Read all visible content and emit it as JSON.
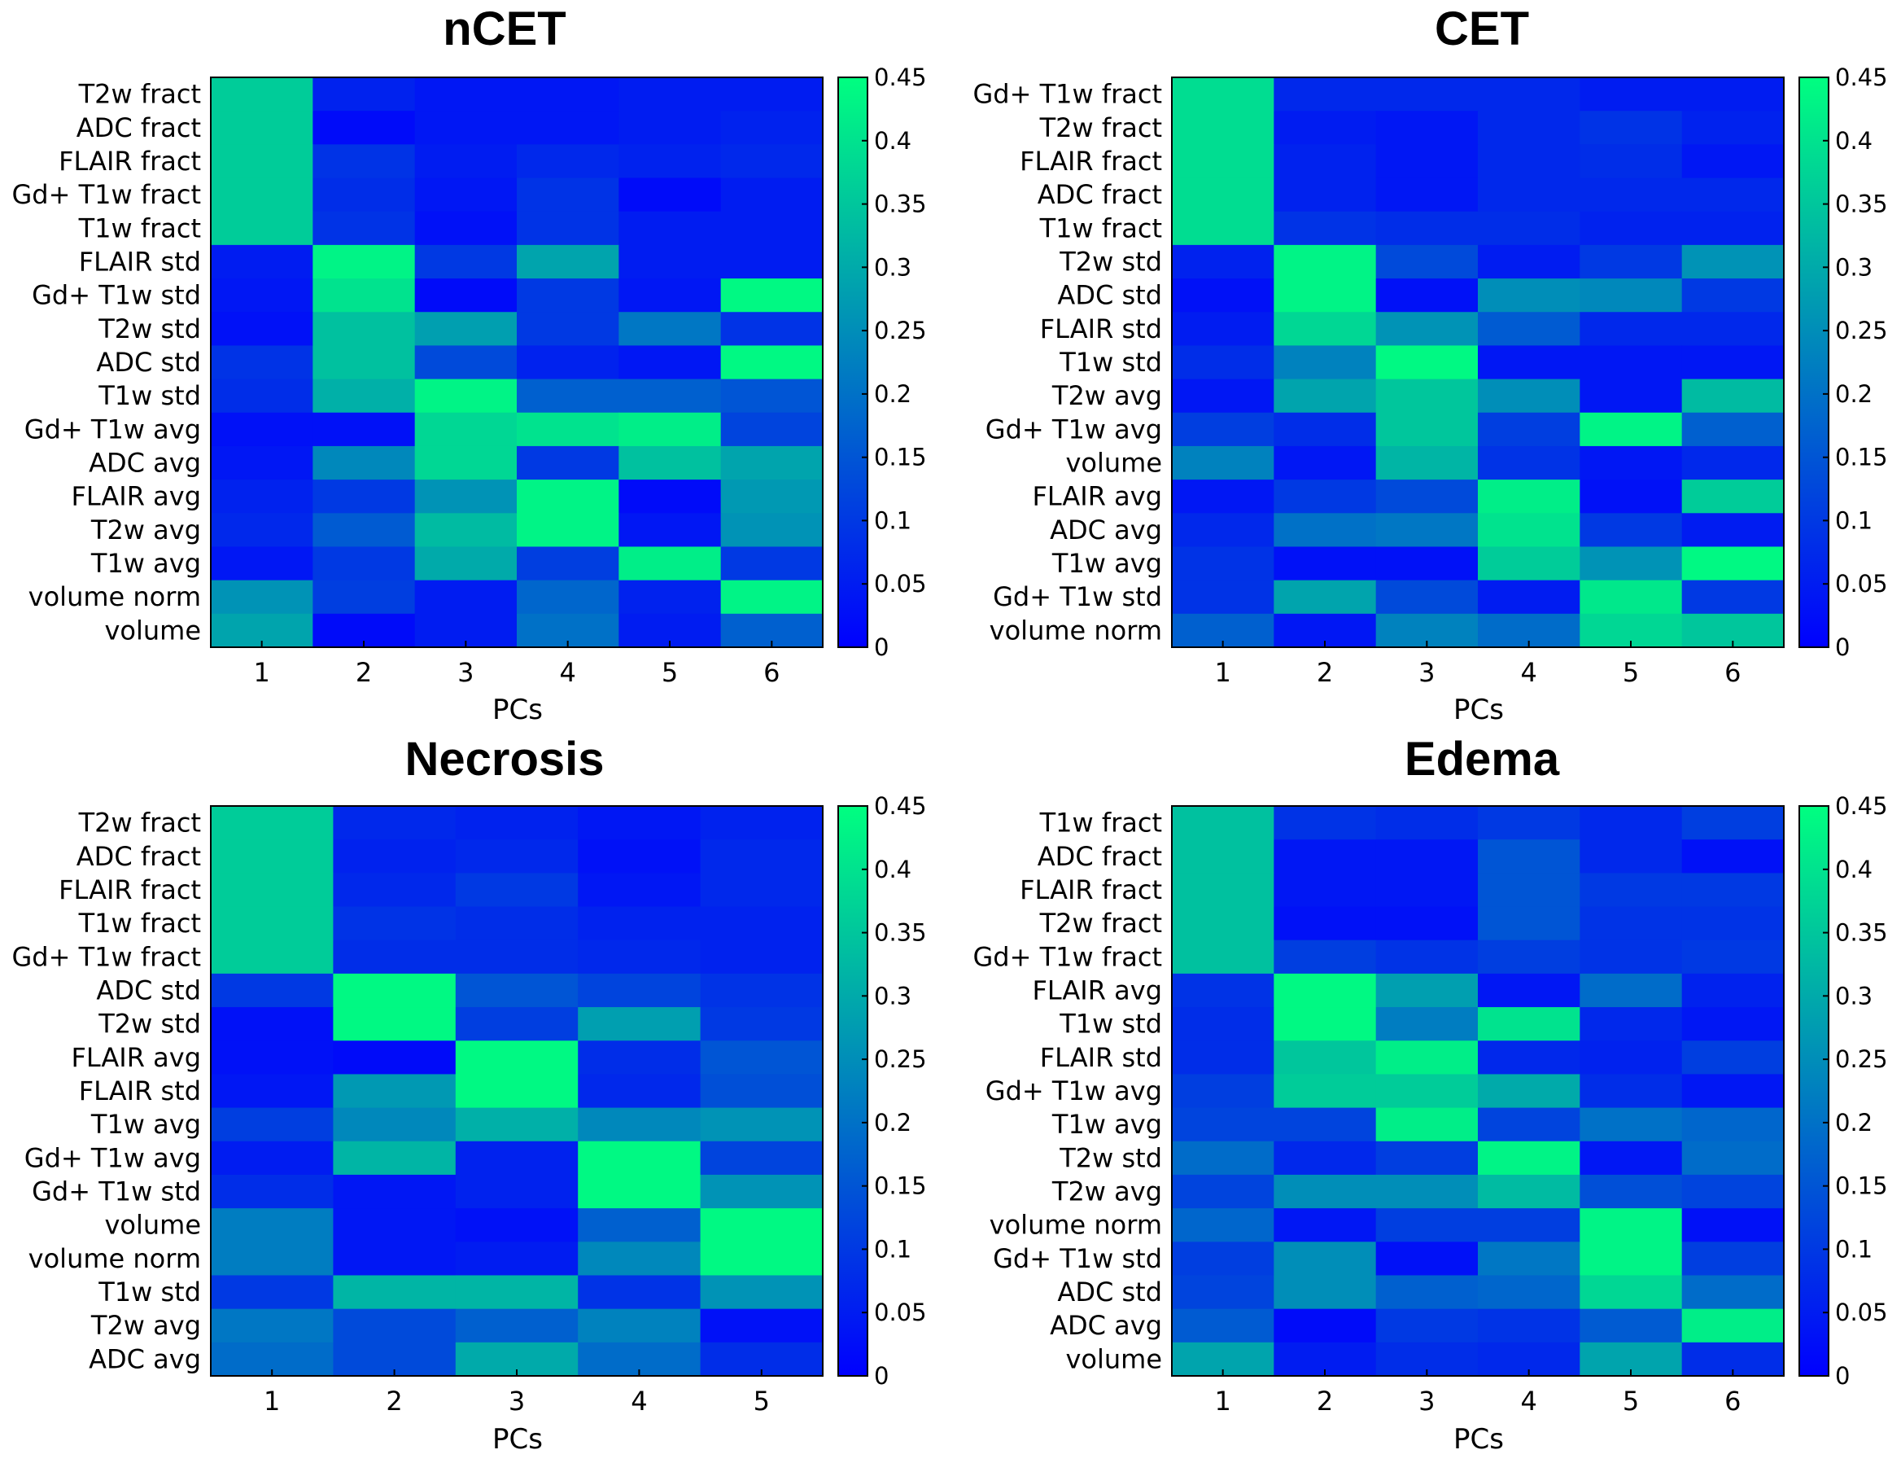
{
  "colormap": {
    "low": "#0000ff",
    "high": "#00ff80"
  },
  "chart_data": [
    {
      "type": "heatmap",
      "title": "nCET",
      "xlabel": "PCs",
      "x": [
        "1",
        "2",
        "3",
        "4",
        "5",
        "6"
      ],
      "rows": [
        "T2w fract",
        "ADC fract",
        "FLAIR fract",
        "Gd+ T1w fract",
        "T1w fract",
        "FLAIR std",
        "Gd+ T1w std",
        "T2w std",
        "ADC std",
        "T1w std",
        "Gd+ T1w avg",
        "ADC avg",
        "FLAIR avg",
        "T2w avg",
        "T1w avg",
        "volume norm",
        "volume"
      ],
      "values": [
        [
          0.36,
          0.06,
          0.04,
          0.04,
          0.05,
          0.05
        ],
        [
          0.36,
          0.02,
          0.04,
          0.04,
          0.05,
          0.06
        ],
        [
          0.36,
          0.09,
          0.05,
          0.07,
          0.06,
          0.07
        ],
        [
          0.36,
          0.08,
          0.04,
          0.09,
          0.02,
          0.05
        ],
        [
          0.36,
          0.09,
          0.03,
          0.09,
          0.05,
          0.05
        ],
        [
          0.05,
          0.43,
          0.1,
          0.29,
          0.05,
          0.05
        ],
        [
          0.04,
          0.4,
          0.02,
          0.1,
          0.04,
          0.44
        ],
        [
          0.03,
          0.34,
          0.28,
          0.1,
          0.21,
          0.09
        ],
        [
          0.09,
          0.34,
          0.13,
          0.06,
          0.04,
          0.44
        ],
        [
          0.08,
          0.31,
          0.43,
          0.17,
          0.17,
          0.15
        ],
        [
          0.03,
          0.03,
          0.38,
          0.4,
          0.42,
          0.12
        ],
        [
          0.04,
          0.24,
          0.38,
          0.1,
          0.34,
          0.29
        ],
        [
          0.06,
          0.1,
          0.26,
          0.43,
          0.02,
          0.27
        ],
        [
          0.07,
          0.16,
          0.33,
          0.43,
          0.04,
          0.26
        ],
        [
          0.04,
          0.1,
          0.3,
          0.11,
          0.42,
          0.1
        ],
        [
          0.26,
          0.11,
          0.05,
          0.18,
          0.06,
          0.43
        ],
        [
          0.29,
          0.02,
          0.05,
          0.2,
          0.05,
          0.17
        ]
      ],
      "colorbar": {
        "min": 0,
        "max": 0.45,
        "ticks": [
          "0",
          "0.05",
          "0.1",
          "0.15",
          "0.2",
          "0.25",
          "0.3",
          "0.35",
          "0.4",
          "0.45"
        ]
      }
    },
    {
      "type": "heatmap",
      "title": "CET",
      "xlabel": "PCs",
      "x": [
        "1",
        "2",
        "3",
        "4",
        "5",
        "6"
      ],
      "rows": [
        "Gd+ T1w fract",
        "T2w fract",
        "FLAIR fract",
        "ADC fract",
        "T1w fract",
        "T2w std",
        "ADC std",
        "FLAIR std",
        "T1w std",
        "T2w avg",
        "Gd+ T1w avg",
        "volume",
        "FLAIR avg",
        "ADC avg",
        "T1w avg",
        "Gd+ T1w std",
        "volume norm"
      ],
      "values": [
        [
          0.39,
          0.07,
          0.07,
          0.07,
          0.05,
          0.05
        ],
        [
          0.39,
          0.05,
          0.04,
          0.07,
          0.09,
          0.06
        ],
        [
          0.39,
          0.06,
          0.04,
          0.07,
          0.08,
          0.04
        ],
        [
          0.39,
          0.06,
          0.04,
          0.07,
          0.07,
          0.07
        ],
        [
          0.39,
          0.09,
          0.08,
          0.08,
          0.06,
          0.06
        ],
        [
          0.06,
          0.43,
          0.13,
          0.05,
          0.1,
          0.26
        ],
        [
          0.03,
          0.43,
          0.03,
          0.25,
          0.24,
          0.1
        ],
        [
          0.05,
          0.38,
          0.26,
          0.16,
          0.07,
          0.07
        ],
        [
          0.08,
          0.23,
          0.44,
          0.04,
          0.04,
          0.04
        ],
        [
          0.04,
          0.29,
          0.35,
          0.25,
          0.04,
          0.33
        ],
        [
          0.11,
          0.08,
          0.35,
          0.11,
          0.43,
          0.17
        ],
        [
          0.23,
          0.04,
          0.32,
          0.09,
          0.04,
          0.07
        ],
        [
          0.04,
          0.1,
          0.13,
          0.42,
          0.03,
          0.36
        ],
        [
          0.07,
          0.2,
          0.21,
          0.4,
          0.1,
          0.05
        ],
        [
          0.09,
          0.03,
          0.03,
          0.36,
          0.26,
          0.44
        ],
        [
          0.09,
          0.29,
          0.13,
          0.05,
          0.41,
          0.1
        ],
        [
          0.17,
          0.04,
          0.23,
          0.19,
          0.38,
          0.35
        ]
      ],
      "colorbar": {
        "min": 0,
        "max": 0.45,
        "ticks": [
          "0",
          "0.05",
          "0.1",
          "0.15",
          "0.2",
          "0.25",
          "0.3",
          "0.35",
          "0.4",
          "0.45"
        ]
      }
    },
    {
      "type": "heatmap",
      "title": "Necrosis",
      "xlabel": "PCs",
      "x": [
        "1",
        "2",
        "3",
        "4",
        "5"
      ],
      "rows": [
        "T2w fract",
        "ADC fract",
        "FLAIR fract",
        "T1w fract",
        "Gd+ T1w fract",
        "ADC std",
        "T2w std",
        "FLAIR avg",
        "FLAIR std",
        "T1w avg",
        "Gd+ T1w avg",
        "Gd+ T1w std",
        "volume",
        "volume norm",
        "T1w std",
        "T2w avg",
        "ADC avg"
      ],
      "values": [
        [
          0.36,
          0.07,
          0.06,
          0.04,
          0.06
        ],
        [
          0.36,
          0.06,
          0.07,
          0.03,
          0.07
        ],
        [
          0.36,
          0.07,
          0.1,
          0.04,
          0.07
        ],
        [
          0.36,
          0.09,
          0.08,
          0.06,
          0.06
        ],
        [
          0.36,
          0.08,
          0.08,
          0.07,
          0.06
        ],
        [
          0.1,
          0.44,
          0.15,
          0.12,
          0.09
        ],
        [
          0.03,
          0.44,
          0.11,
          0.28,
          0.1
        ],
        [
          0.03,
          0.02,
          0.44,
          0.08,
          0.15
        ],
        [
          0.04,
          0.27,
          0.44,
          0.07,
          0.14
        ],
        [
          0.11,
          0.24,
          0.31,
          0.24,
          0.26
        ],
        [
          0.05,
          0.32,
          0.06,
          0.44,
          0.12
        ],
        [
          0.08,
          0.04,
          0.06,
          0.44,
          0.26
        ],
        [
          0.22,
          0.04,
          0.03,
          0.17,
          0.44
        ],
        [
          0.22,
          0.04,
          0.05,
          0.24,
          0.44
        ],
        [
          0.1,
          0.32,
          0.32,
          0.09,
          0.26
        ],
        [
          0.21,
          0.13,
          0.17,
          0.23,
          0.03
        ],
        [
          0.19,
          0.13,
          0.3,
          0.19,
          0.08
        ]
      ],
      "colorbar": {
        "min": 0,
        "max": 0.45,
        "ticks": [
          "0",
          "0.05",
          "0.1",
          "0.15",
          "0.2",
          "0.25",
          "0.3",
          "0.35",
          "0.4",
          "0.45"
        ]
      }
    },
    {
      "type": "heatmap",
      "title": "Edema",
      "xlabel": "PCs",
      "x": [
        "1",
        "2",
        "3",
        "4",
        "5",
        "6"
      ],
      "rows": [
        "T1w fract",
        "ADC fract",
        "FLAIR fract",
        "T2w fract",
        "Gd+ T1w fract",
        "FLAIR avg",
        "T1w std",
        "FLAIR std",
        "Gd+ T1w avg",
        "T1w avg",
        "T2w std",
        "T2w avg",
        "volume norm",
        "Gd+ T1w std",
        "ADC std",
        "ADC avg",
        "volume"
      ],
      "values": [
        [
          0.34,
          0.09,
          0.08,
          0.1,
          0.07,
          0.11
        ],
        [
          0.34,
          0.04,
          0.04,
          0.15,
          0.07,
          0.03
        ],
        [
          0.34,
          0.04,
          0.04,
          0.15,
          0.1,
          0.1
        ],
        [
          0.34,
          0.03,
          0.03,
          0.15,
          0.09,
          0.09
        ],
        [
          0.34,
          0.11,
          0.09,
          0.11,
          0.09,
          0.1
        ],
        [
          0.09,
          0.44,
          0.28,
          0.04,
          0.19,
          0.06
        ],
        [
          0.08,
          0.44,
          0.22,
          0.4,
          0.07,
          0.04
        ],
        [
          0.08,
          0.35,
          0.42,
          0.07,
          0.06,
          0.11
        ],
        [
          0.11,
          0.36,
          0.36,
          0.3,
          0.08,
          0.04
        ],
        [
          0.12,
          0.12,
          0.42,
          0.12,
          0.2,
          0.18
        ],
        [
          0.19,
          0.07,
          0.11,
          0.43,
          0.04,
          0.19
        ],
        [
          0.12,
          0.25,
          0.25,
          0.33,
          0.14,
          0.12
        ],
        [
          0.18,
          0.04,
          0.11,
          0.11,
          0.43,
          0.03
        ],
        [
          0.11,
          0.25,
          0.03,
          0.21,
          0.43,
          0.11
        ],
        [
          0.12,
          0.25,
          0.17,
          0.18,
          0.38,
          0.19
        ],
        [
          0.16,
          0.02,
          0.1,
          0.09,
          0.16,
          0.42
        ],
        [
          0.29,
          0.05,
          0.08,
          0.07,
          0.29,
          0.08
        ]
      ],
      "colorbar": {
        "min": 0,
        "max": 0.45,
        "ticks": [
          "0",
          "0.05",
          "0.1",
          "0.15",
          "0.2",
          "0.25",
          "0.3",
          "0.35",
          "0.4",
          "0.45"
        ]
      }
    }
  ]
}
